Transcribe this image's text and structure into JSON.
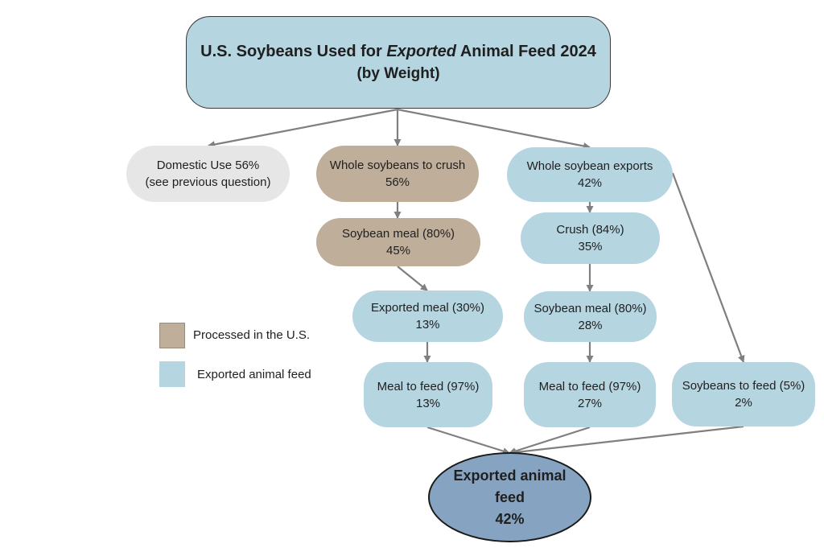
{
  "title": {
    "prefix": "U.S. Soybeans Used for ",
    "emph": "Exported",
    "suffix": " Animal Feed 2024",
    "subtitle": "(by Weight)"
  },
  "nodes": {
    "domestic": {
      "line1": "Domestic Use 56%",
      "line2": "(see previous question)"
    },
    "whole_crush": {
      "line1": "Whole soybeans to crush",
      "line2": "56%"
    },
    "whole_exports": {
      "line1": "Whole soybean exports",
      "line2": "42%"
    },
    "soy_meal_us": {
      "line1": "Soybean meal (80%)",
      "line2": "45%"
    },
    "crush_84": {
      "line1": "Crush (84%)",
      "line2": "35%"
    },
    "exported_meal": {
      "line1": "Exported meal (30%)",
      "line2": "13%"
    },
    "soy_meal_abroad": {
      "line1": "Soybean meal (80%)",
      "line2": "28%"
    },
    "meal_feed_13": {
      "line1": "Meal to feed (97%)",
      "line2": "13%"
    },
    "meal_feed_27": {
      "line1": "Meal to feed (97%)",
      "line2": "27%"
    },
    "soybeans_feed": {
      "line1": "Soybeans to feed (5%)",
      "line2": "2%"
    },
    "final": {
      "line1": "Exported animal",
      "line2": "feed",
      "line3": "42%"
    }
  },
  "legend": {
    "processed": "Processed in the U.S.",
    "exported": "Exported animal feed"
  },
  "colors": {
    "blue": "#b5d5e1",
    "tan": "#bfae9a",
    "grey": "#e6e6e6",
    "final": "#86a4c1",
    "arrow": "#7f7f7f"
  }
}
